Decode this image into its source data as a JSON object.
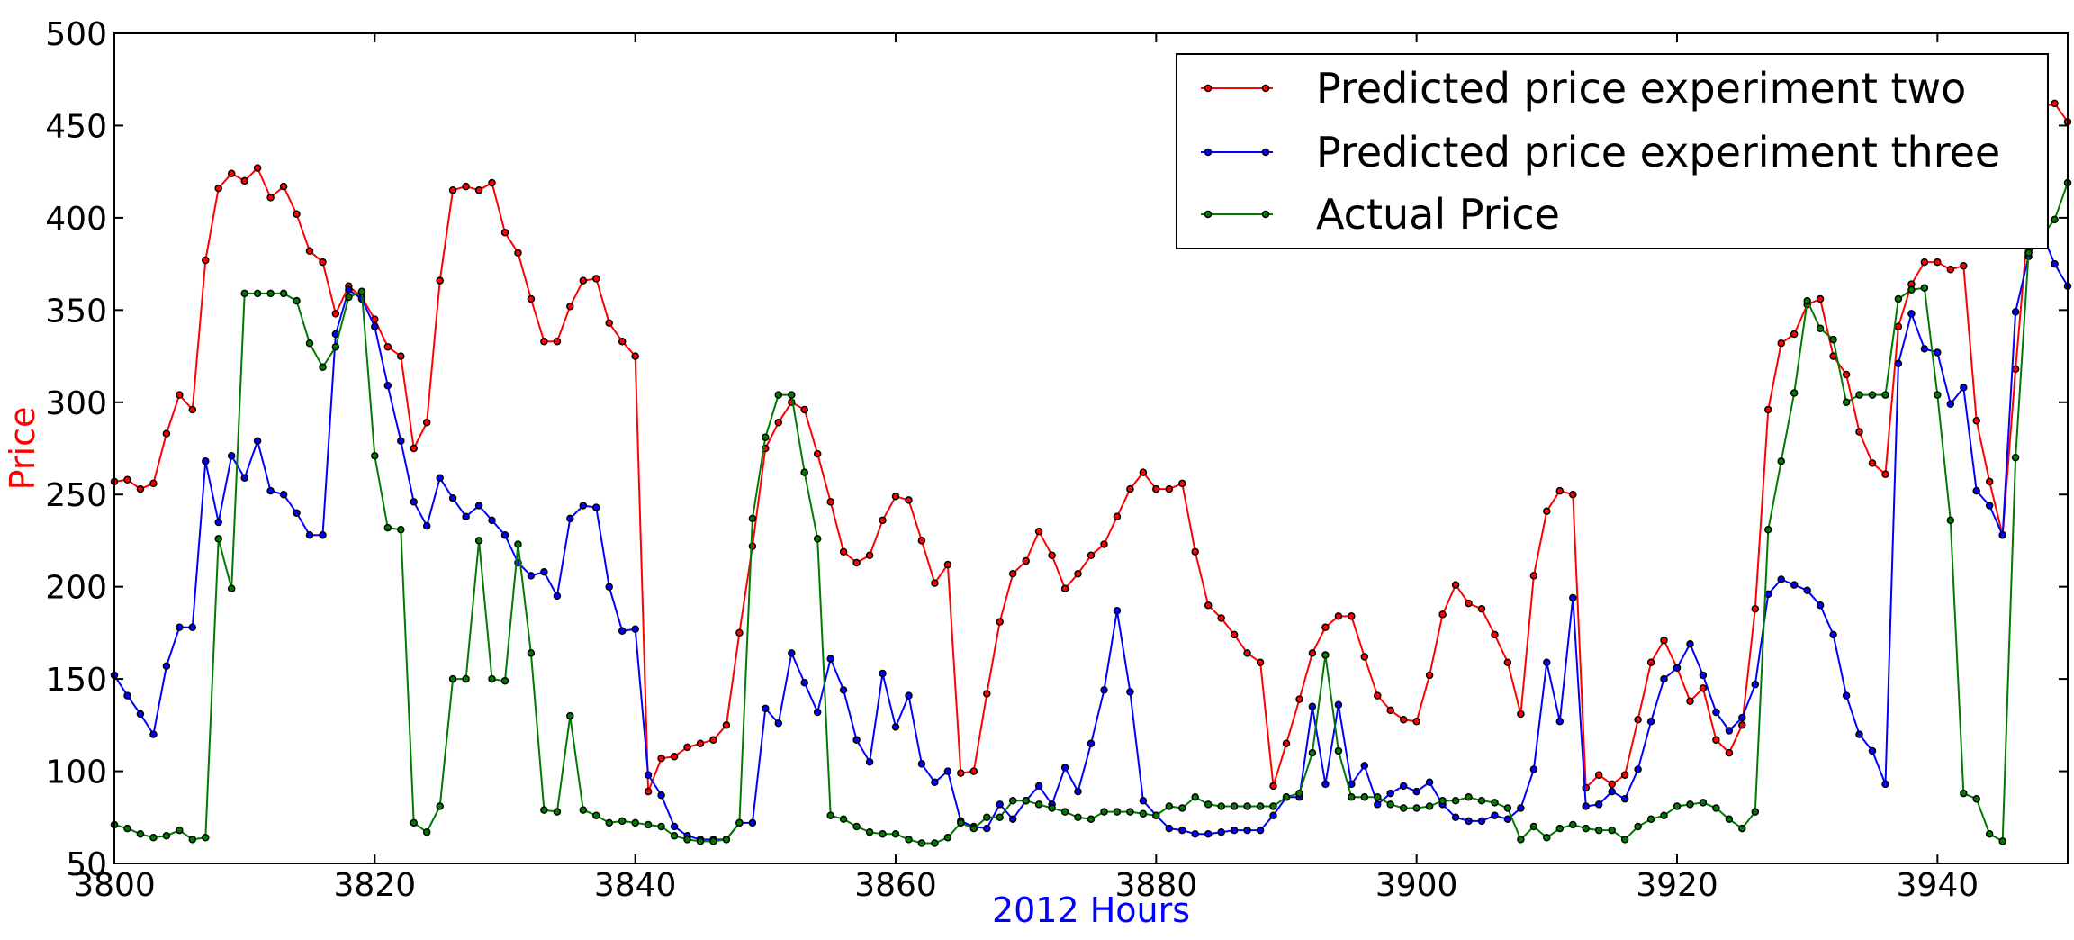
{
  "chart_data": {
    "type": "line",
    "xlabel": "2012 Hours",
    "ylabel": "Price",
    "xlim": [
      3800,
      3950
    ],
    "ylim": [
      50,
      500
    ],
    "x_ticks": [
      3800,
      3820,
      3840,
      3860,
      3880,
      3900,
      3920,
      3940
    ],
    "y_ticks": [
      50,
      100,
      150,
      200,
      250,
      300,
      350,
      400,
      450,
      500
    ],
    "grid": false,
    "legend_position": "top-right",
    "colors": {
      "xlabel": "#0000ff",
      "ylabel": "#ff0000"
    },
    "x_start": 3800,
    "series": [
      {
        "name": "Predicted price experiment two",
        "color": "#ff0000",
        "values": [
          257,
          258,
          253,
          256,
          283,
          304,
          296,
          377,
          416,
          424,
          420,
          427,
          411,
          417,
          402,
          382,
          376,
          348,
          363,
          357,
          345,
          330,
          325,
          275,
          289,
          366,
          415,
          417,
          415,
          419,
          392,
          381,
          356,
          333,
          333,
          352,
          366,
          367,
          343,
          333,
          325,
          89,
          107,
          108,
          113,
          115,
          117,
          125,
          175,
          222,
          275,
          289,
          300,
          296,
          272,
          246,
          219,
          213,
          217,
          236,
          249,
          247,
          225,
          202,
          212,
          99,
          100,
          142,
          181,
          207,
          214,
          230,
          217,
          199,
          207,
          217,
          223,
          238,
          253,
          262,
          253,
          253,
          256,
          219,
          190,
          183,
          174,
          164,
          159,
          92,
          115,
          139,
          164,
          178,
          184,
          184,
          162,
          141,
          133,
          128,
          127,
          152,
          185,
          201,
          191,
          188,
          174,
          159,
          131,
          206,
          241,
          252,
          250,
          91,
          98,
          93,
          98,
          128,
          159,
          171,
          156,
          138,
          145,
          117,
          110,
          125,
          188,
          296,
          332,
          337,
          353,
          356,
          325,
          315,
          284,
          267,
          261,
          341,
          364,
          376,
          376,
          372,
          374,
          290,
          257,
          228,
          318,
          400,
          460,
          462,
          452
        ]
      },
      {
        "name": "Predicted price experiment three",
        "color": "#0000ff",
        "values": [
          152,
          141,
          131,
          120,
          157,
          178,
          178,
          268,
          235,
          271,
          259,
          279,
          252,
          250,
          240,
          228,
          228,
          337,
          361,
          356,
          341,
          309,
          279,
          246,
          233,
          259,
          248,
          238,
          244,
          236,
          228,
          213,
          206,
          208,
          195,
          237,
          244,
          243,
          200,
          176,
          177,
          98,
          87,
          70,
          65,
          63,
          63,
          63,
          72,
          72,
          134,
          126,
          164,
          148,
          132,
          161,
          144,
          117,
          105,
          153,
          124,
          141,
          104,
          94,
          100,
          73,
          70,
          69,
          82,
          74,
          84,
          92,
          82,
          102,
          89,
          115,
          144,
          187,
          143,
          84,
          76,
          69,
          68,
          66,
          66,
          67,
          68,
          68,
          68,
          76,
          86,
          86,
          135,
          93,
          136,
          93,
          103,
          82,
          88,
          92,
          89,
          94,
          82,
          75,
          73,
          73,
          76,
          74,
          80,
          101,
          159,
          127,
          194,
          81,
          82,
          89,
          85,
          101,
          127,
          150,
          156,
          169,
          152,
          132,
          122,
          129,
          147,
          196,
          204,
          201,
          198,
          190,
          174,
          141,
          120,
          111,
          93,
          321,
          348,
          329,
          327,
          299,
          308,
          252,
          244,
          228,
          349,
          379,
          392,
          375,
          363
        ]
      },
      {
        "name": "Actual Price",
        "color": "#007a00",
        "values": [
          71,
          69,
          66,
          64,
          65,
          68,
          63,
          64,
          226,
          199,
          359,
          359,
          359,
          359,
          355,
          332,
          319,
          330,
          357,
          360,
          271,
          232,
          231,
          72,
          67,
          81,
          150,
          150,
          225,
          150,
          149,
          223,
          164,
          79,
          78,
          130,
          79,
          76,
          72,
          73,
          72,
          71,
          70,
          65,
          63,
          62,
          62,
          63,
          72,
          237,
          281,
          304,
          304,
          262,
          226,
          76,
          74,
          70,
          67,
          66,
          66,
          63,
          61,
          61,
          64,
          72,
          69,
          75,
          75,
          84,
          84,
          82,
          80,
          78,
          75,
          74,
          78,
          78,
          78,
          77,
          76,
          81,
          80,
          86,
          82,
          81,
          81,
          81,
          81,
          81,
          86,
          88,
          110,
          163,
          111,
          86,
          86,
          86,
          82,
          80,
          80,
          81,
          84,
          84,
          86,
          84,
          83,
          80,
          63,
          70,
          64,
          69,
          71,
          69,
          68,
          68,
          63,
          70,
          74,
          76,
          81,
          82,
          83,
          80,
          74,
          69,
          78,
          231,
          268,
          305,
          355,
          340,
          334,
          300,
          304,
          304,
          304,
          356,
          361,
          362,
          304,
          236,
          88,
          85,
          66,
          62,
          270,
          381,
          390,
          399,
          419
        ]
      }
    ]
  }
}
